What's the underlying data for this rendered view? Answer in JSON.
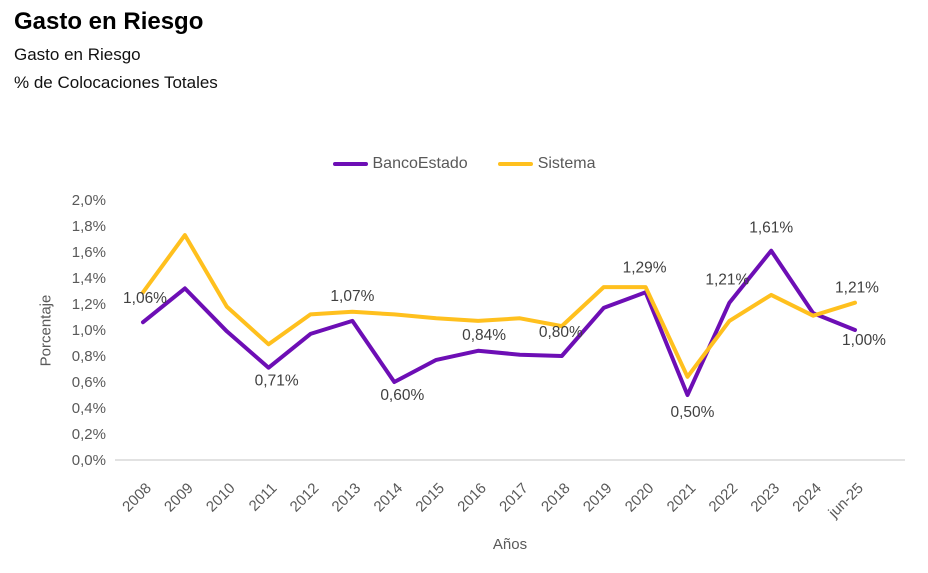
{
  "header": {
    "title": "Gasto en Riesgo",
    "subtitle1": "Gasto en Riesgo",
    "subtitle2": "% de Colocaciones Totales"
  },
  "legend": {
    "items": [
      {
        "label": "BancoEstado",
        "color": "#6D0EB5"
      },
      {
        "label": "Sistema",
        "color": "#FFC01E"
      }
    ]
  },
  "axes": {
    "y_title": "Porcentaje",
    "x_title": "Años",
    "y_tick_labels": [
      "0,0%",
      "0,2%",
      "0,4%",
      "0,6%",
      "0,8%",
      "1,0%",
      "1,2%",
      "1,4%",
      "1,6%",
      "1,8%",
      "2,0%"
    ],
    "axis_line_color": "#D9D9D9",
    "tick_text_color": "#595959",
    "data_label_color": "#404040"
  },
  "chart_data": {
    "type": "line",
    "title": "Gasto en Riesgo",
    "subtitle": "% de Colocaciones Totales",
    "xlabel": "Años",
    "ylabel": "Porcentaje",
    "ylim": [
      0,
      2
    ],
    "y_step": 0.2,
    "grid": false,
    "legend_position": "top",
    "categories": [
      "2008",
      "2009",
      "2010",
      "2011",
      "2012",
      "2013",
      "2014",
      "2015",
      "2016",
      "2017",
      "2018",
      "2019",
      "2020",
      "2021",
      "2022",
      "2023",
      "2024",
      "jun-25"
    ],
    "series": [
      {
        "name": "BancoEstado",
        "color": "#6D0EB5",
        "values": [
          1.06,
          1.32,
          0.99,
          0.71,
          0.97,
          1.07,
          0.6,
          0.77,
          0.84,
          0.81,
          0.8,
          1.17,
          1.29,
          0.5,
          1.21,
          1.61,
          1.13,
          1.0
        ]
      },
      {
        "name": "Sistema",
        "color": "#FFC01E",
        "values": [
          1.29,
          1.73,
          1.18,
          0.89,
          1.12,
          1.14,
          1.12,
          1.09,
          1.07,
          1.09,
          1.03,
          1.33,
          1.33,
          0.64,
          1.07,
          1.27,
          1.11,
          1.21
        ]
      }
    ],
    "point_labels": [
      {
        "series": "BancoEstado",
        "index": 0,
        "text": "1,06%"
      },
      {
        "series": "BancoEstado",
        "index": 3,
        "text": "0,71%"
      },
      {
        "series": "BancoEstado",
        "index": 5,
        "text": "1,07%"
      },
      {
        "series": "BancoEstado",
        "index": 6,
        "text": "0,60%"
      },
      {
        "series": "BancoEstado",
        "index": 8,
        "text": "0,84%"
      },
      {
        "series": "BancoEstado",
        "index": 10,
        "text": "0,80%"
      },
      {
        "series": "BancoEstado",
        "index": 12,
        "text": "1,29%"
      },
      {
        "series": "BancoEstado",
        "index": 13,
        "text": "0,50%"
      },
      {
        "series": "BancoEstado",
        "index": 14,
        "text": "1,21%"
      },
      {
        "series": "BancoEstado",
        "index": 15,
        "text": "1,61%"
      },
      {
        "series": "BancoEstado",
        "index": 17,
        "text": "1,00%"
      },
      {
        "series": "Sistema",
        "index": 17,
        "text": "1,21%"
      }
    ]
  }
}
